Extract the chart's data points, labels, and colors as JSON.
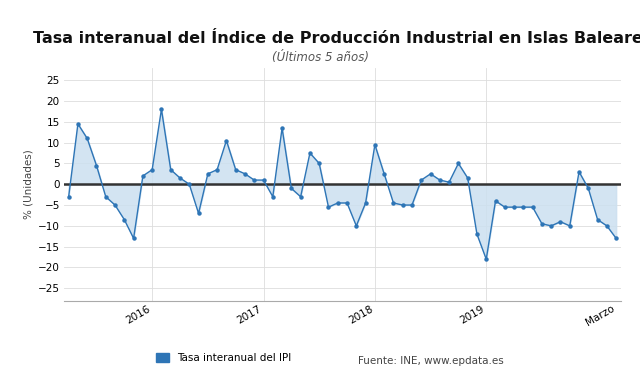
{
  "title": "Tasa interanual del Índice de Producción Industrial en Islas Baleares",
  "subtitle": "(Últimos 5 años)",
  "ylabel": "% (Unidades)",
  "legend_label": "Tasa interanual del IPI",
  "source_text": "Fuente: INE, www.epdata.es",
  "xlabels": [
    "2016",
    "2017",
    "2018",
    "2019",
    "Marzo"
  ],
  "ylim": [
    -28,
    28
  ],
  "yticks": [
    -25,
    -20,
    -15,
    -10,
    -5,
    0,
    5,
    10,
    15,
    20,
    25
  ],
  "line_color": "#2e75b6",
  "fill_color": "#cce0f0",
  "zero_line_color": "#333333",
  "background_color": "#ffffff",
  "plot_bg_color": "#ffffff",
  "grid_color": "#dddddd",
  "values": [
    -3.0,
    14.5,
    11.0,
    4.5,
    -3.0,
    -5.0,
    -8.5,
    -13.0,
    2.0,
    3.5,
    18.0,
    3.5,
    1.5,
    0.0,
    -7.0,
    2.5,
    3.5,
    10.5,
    3.5,
    2.5,
    1.0,
    1.0,
    -3.0,
    13.5,
    -1.0,
    -3.0,
    7.5,
    5.0,
    -5.5,
    -4.5,
    -4.5,
    -10.0,
    -4.5,
    9.5,
    2.5,
    -4.5,
    -5.0,
    -5.0,
    1.0,
    2.5,
    1.0,
    0.5,
    5.0,
    1.5,
    -12.0,
    -18.0,
    -4.0,
    -5.5,
    -5.5,
    -5.5,
    -5.5,
    -9.5,
    -10.0,
    -9.0,
    -10.0,
    3.0,
    -1.0,
    -8.5,
    -10.0,
    -13.0
  ],
  "year_positions": [
    9,
    21,
    33,
    45,
    59
  ],
  "title_fontsize": 11.5,
  "subtitle_fontsize": 8.5,
  "tick_fontsize": 7.5,
  "ylabel_fontsize": 7.5
}
